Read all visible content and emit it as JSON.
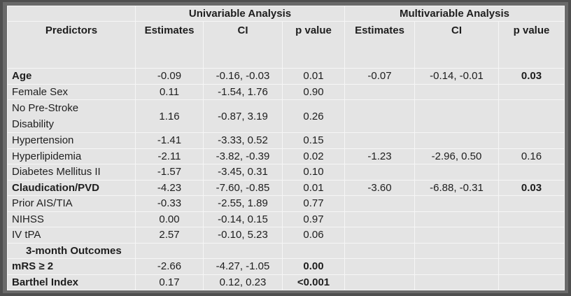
{
  "header": {
    "groups": [
      "Univariable Analysis",
      "Multivariable Analysis"
    ],
    "columns": [
      "Predictors",
      "Estimates",
      "CI",
      "p value",
      "Estimates",
      "CI",
      "p value"
    ]
  },
  "table": {
    "rows": [
      [
        "Age",
        "-0.09",
        "-0.16, -0.03",
        "0.01",
        "-0.07",
        "-0.14, -0.01",
        "0.03"
      ],
      [
        "Female Sex",
        "0.11",
        "-1.54, 1.76",
        "0.90"
      ],
      [
        "No Pre-Stroke Disability",
        "1.16",
        "-0.87, 3.19",
        "0.26"
      ],
      [
        "Hypertension",
        "-1.41",
        "-3.33, 0.52",
        "0.15"
      ],
      [
        "Hyperlipidemia",
        "-2.11",
        "-3.82, -0.39",
        "0.02",
        "-1.23",
        "-2.96, 0.50",
        "0.16"
      ],
      [
        "Diabetes Mellitus II",
        "-1.57",
        "-3.45, 0.31",
        "0.10"
      ],
      [
        "Claudication/PVD",
        "-4.23",
        "-7.60, -0.85",
        "0.01",
        "-3.60",
        "-6.88, -0.31",
        "0.03"
      ],
      [
        "Prior AIS/TIA",
        "-0.33",
        "-2.55, 1.89",
        "0.77"
      ],
      [
        "NIHSS",
        "0.00",
        "-0.14, 0.15",
        "0.97"
      ],
      [
        "IV tPA",
        "2.57",
        "-0.10, 5.23",
        "0.06"
      ],
      [
        "3-month Outcomes"
      ],
      [
        "mRS ≥ 2",
        "-2.66",
        "-4.27, -1.05",
        "0.00"
      ],
      [
        "Barthel Index",
        "0.17",
        "0.12, 0.23",
        "<0.001"
      ]
    ]
  }
}
